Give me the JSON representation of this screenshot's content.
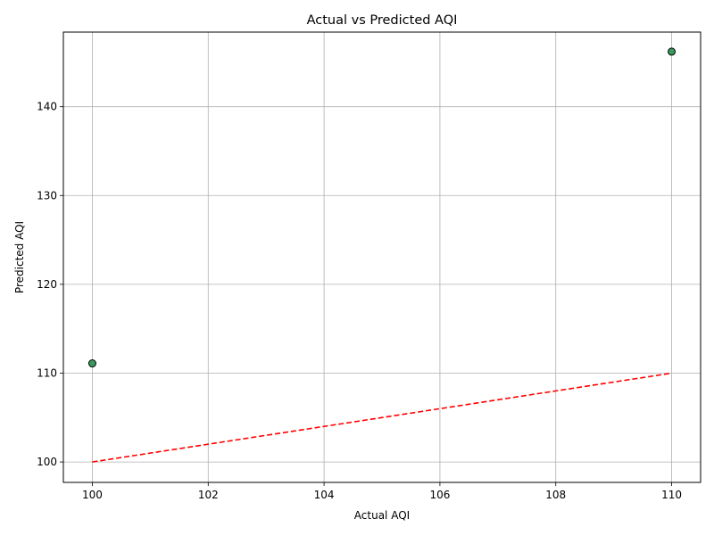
{
  "chart_data": {
    "type": "scatter",
    "title": "Actual vs Predicted AQI",
    "xlabel": "Actual AQI",
    "ylabel": "Predicted AQI",
    "xlim": [
      99.5,
      110.5
    ],
    "ylim": [
      97.7,
      148.4
    ],
    "xticks": [
      100,
      102,
      104,
      106,
      108,
      110
    ],
    "yticks": [
      100,
      110,
      120,
      130,
      140
    ],
    "grid": true,
    "points": [
      {
        "x": 100,
        "y": 111.1
      },
      {
        "x": 110,
        "y": 146.2
      }
    ],
    "reference_line": {
      "x": [
        100,
        110
      ],
      "y": [
        100,
        110
      ],
      "style": "dashed"
    },
    "colors": {
      "marker_fill": "#3a9a5b",
      "marker_edge": "#000000",
      "reference_line": "#ff0000",
      "grid": "#b0b0b0"
    }
  }
}
